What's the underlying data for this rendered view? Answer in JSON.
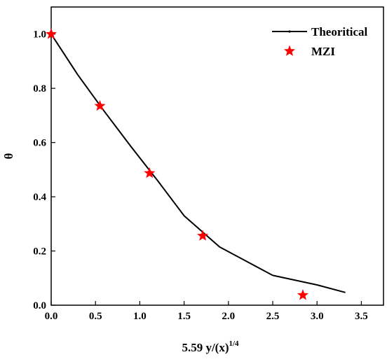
{
  "chart_data": {
    "type": "line",
    "title": "",
    "xlabel": {
      "main": "5.59 y/(x)",
      "superscript": "1/4"
    },
    "ylabel": "θ",
    "xlim": [
      0,
      3.75
    ],
    "ylim": [
      0,
      1.1
    ],
    "x_ticks": [
      0.0,
      0.5,
      1.0,
      1.5,
      2.0,
      2.5,
      3.0,
      3.5
    ],
    "x_tick_labels": [
      "0.0",
      "0.5",
      "1.0",
      "1.5",
      "2.0",
      "2.5",
      "3.0",
      "3.5"
    ],
    "y_ticks": [
      0.0,
      0.2,
      0.4,
      0.6,
      0.8,
      1.0
    ],
    "y_tick_labels": [
      "0.0",
      "0.2",
      "0.4",
      "0.6",
      "0.8",
      "1.0"
    ],
    "grid": false,
    "legend_position": "top-right",
    "series": [
      {
        "name": "Theoritical",
        "kind": "line",
        "color": "#000000",
        "x": [
          0.0,
          0.3,
          0.6,
          0.9,
          1.2,
          1.5,
          1.9,
          2.5,
          3.0,
          3.32
        ],
        "y": [
          1.0,
          0.85,
          0.715,
          0.585,
          0.46,
          0.33,
          0.215,
          0.11,
          0.075,
          0.047
        ]
      },
      {
        "name": "MZI",
        "kind": "scatter",
        "marker": "star",
        "color": "#ff0000",
        "x": [
          0.0,
          0.55,
          1.11,
          1.71,
          2.84
        ],
        "y": [
          1.0,
          0.735,
          0.487,
          0.256,
          0.037
        ]
      }
    ]
  }
}
